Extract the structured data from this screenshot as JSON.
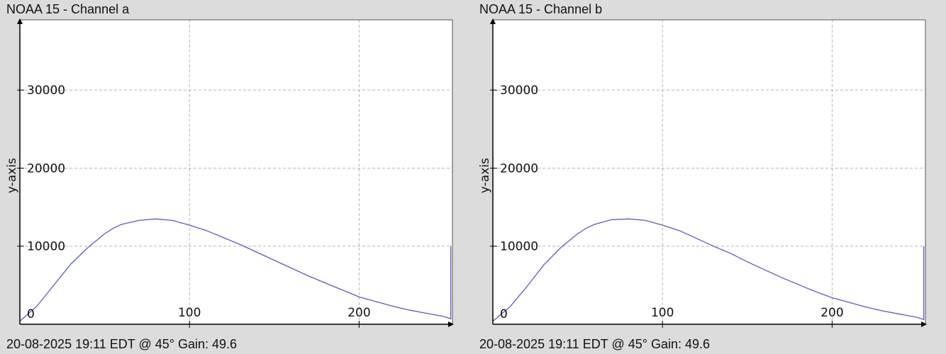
{
  "charts": [
    {
      "title": "NOAA 15 - Channel a",
      "footer": "20-08-2025 19:11 EDT @ 45° Gain: 49.6",
      "chart_data": {
        "type": "line",
        "title": "NOAA 15 - Channel a",
        "xlabel": "",
        "ylabel": "y-axis",
        "xlim": [
          0,
          255
        ],
        "ylim": [
          0,
          39000
        ],
        "xticks": [
          0,
          100,
          200
        ],
        "yticks": [
          0,
          10000,
          20000,
          30000
        ],
        "grid": true,
        "series_color": "#5a5ac8",
        "x": [
          0,
          10,
          20,
          30,
          40,
          50,
          55,
          60,
          70,
          80,
          90,
          100,
          110,
          120,
          130,
          140,
          150,
          160,
          170,
          180,
          190,
          200,
          210,
          220,
          230,
          240,
          250,
          254,
          254,
          254
        ],
        "y": [
          400,
          2300,
          5000,
          7700,
          9800,
          11600,
          12300,
          12800,
          13300,
          13500,
          13300,
          12700,
          12000,
          11100,
          10200,
          9200,
          8200,
          7200,
          6200,
          5300,
          4400,
          3500,
          2900,
          2300,
          1800,
          1400,
          1000,
          700,
          10000,
          700
        ]
      }
    },
    {
      "title": "NOAA 15 - Channel b",
      "footer": "20-08-2025 19:11 EDT @ 45° Gain: 49.6",
      "chart_data": {
        "type": "line",
        "title": "NOAA 15 - Channel b",
        "xlabel": "",
        "ylabel": "y-axis",
        "xlim": [
          0,
          255
        ],
        "ylim": [
          0,
          39000
        ],
        "xticks": [
          0,
          100,
          200
        ],
        "yticks": [
          0,
          10000,
          20000,
          30000
        ],
        "grid": true,
        "series_color": "#5a5ac8",
        "x": [
          0,
          10,
          20,
          30,
          40,
          50,
          55,
          60,
          70,
          80,
          90,
          100,
          110,
          120,
          130,
          140,
          150,
          160,
          170,
          180,
          190,
          200,
          210,
          220,
          230,
          240,
          250,
          254,
          254,
          254
        ],
        "y": [
          400,
          2200,
          4800,
          7600,
          9800,
          11600,
          12300,
          12800,
          13400,
          13500,
          13300,
          12700,
          12000,
          11000,
          10000,
          9100,
          8000,
          7000,
          6000,
          5100,
          4200,
          3400,
          2800,
          2200,
          1700,
          1300,
          900,
          600,
          10000,
          600
        ]
      }
    }
  ]
}
